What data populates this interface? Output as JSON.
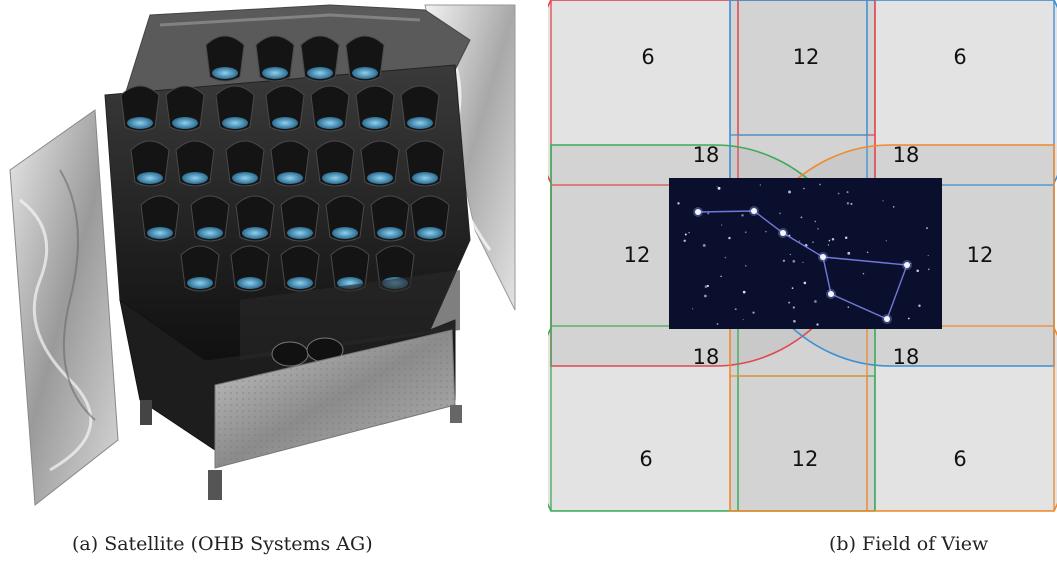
{
  "panel_a": {
    "caption": "(a) Satellite (OHB Systems AG)"
  },
  "panel_b": {
    "caption": "(b) Field of View",
    "overlap_labels": {
      "tl": "6",
      "tc": "12",
      "tr": "6",
      "ul": "18",
      "ur": "18",
      "ml": "12",
      "mr": "12",
      "ll": "18",
      "lr": "18",
      "bl": "6",
      "bc": "12",
      "br": "6"
    },
    "colors": {
      "camera_group_red": "#e0474c",
      "camera_group_blue": "#3b8fd4",
      "camera_group_green": "#3daa5a",
      "camera_group_orange": "#ee8a2c",
      "field_fill": "#bdbdbd",
      "sky_background": "#0b0f2e",
      "constellation_line": "#6f79d9"
    }
  }
}
